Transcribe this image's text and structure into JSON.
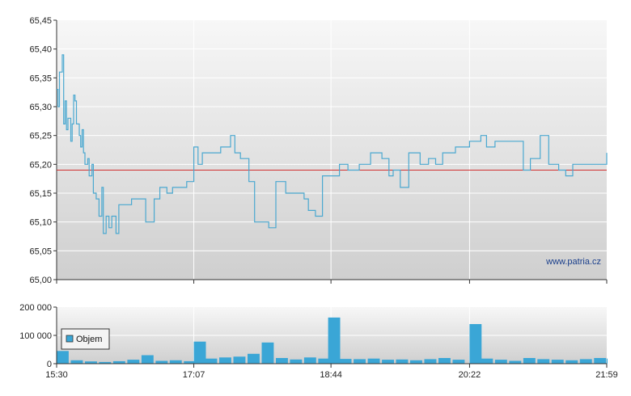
{
  "watermark": "www.patria.cz",
  "colors": {
    "price_line": "#4aa8d0",
    "reference_line": "#d03030",
    "volume_bar": "#3aa6d6"
  },
  "chart_data": [
    {
      "type": "line",
      "title": "",
      "xlabel": "",
      "ylabel": "",
      "grid": true,
      "x_ticks": [
        "15:30",
        "17:07",
        "18:44",
        "20:22",
        "21:59"
      ],
      "y_ticks": [
        "65,45",
        "65,40",
        "65,35",
        "65,30",
        "65,25",
        "65,20",
        "65,15",
        "65,10",
        "65,05",
        "65,00"
      ],
      "ylim": [
        65.0,
        65.45
      ],
      "xlim": [
        "15:30",
        "21:59"
      ],
      "reference_value": 65.19,
      "series": [
        {
          "x": [
            "15:30",
            "15:31",
            "15:32",
            "15:34",
            "15:35",
            "15:36",
            "15:37",
            "15:38",
            "15:40",
            "15:41",
            "15:42",
            "15:43",
            "15:44",
            "15:46",
            "15:47",
            "15:48",
            "15:49",
            "15:50",
            "15:52",
            "15:53",
            "15:55",
            "15:56",
            "15:58",
            "16:00",
            "16:02",
            "16:03",
            "16:05",
            "16:07",
            "16:09",
            "16:12",
            "16:14",
            "16:18",
            "16:23",
            "16:28",
            "16:33",
            "16:39",
            "16:43",
            "16:48",
            "16:52",
            "16:56",
            "17:02",
            "17:07",
            "17:10",
            "17:13",
            "17:20",
            "17:26",
            "17:33",
            "17:36",
            "17:40",
            "17:46",
            "17:50",
            "17:56",
            "18:00",
            "18:05",
            "18:12",
            "18:20",
            "18:25",
            "18:28",
            "18:33",
            "18:38",
            "18:44",
            "18:50",
            "18:56",
            "19:04",
            "19:12",
            "19:20",
            "19:25",
            "19:28",
            "19:33",
            "19:39",
            "19:44",
            "19:47",
            "19:53",
            "19:58",
            "20:03",
            "20:12",
            "20:18",
            "20:22",
            "20:30",
            "20:34",
            "20:40",
            "20:48",
            "20:52",
            "21:00",
            "21:05",
            "21:12",
            "21:18",
            "21:25",
            "21:30",
            "21:35",
            "21:45",
            "21:52",
            "21:59"
          ],
          "values": [
            65.33,
            65.3,
            65.36,
            65.39,
            65.27,
            65.31,
            65.26,
            65.28,
            65.24,
            65.27,
            65.32,
            65.31,
            65.27,
            65.25,
            65.23,
            65.26,
            65.22,
            65.2,
            65.21,
            65.18,
            65.2,
            65.15,
            65.14,
            65.11,
            65.16,
            65.08,
            65.11,
            65.09,
            65.11,
            65.08,
            65.13,
            65.13,
            65.14,
            65.14,
            65.1,
            65.14,
            65.16,
            65.15,
            65.16,
            65.16,
            65.17,
            65.23,
            65.2,
            65.22,
            65.22,
            65.23,
            65.25,
            65.22,
            65.21,
            65.17,
            65.1,
            65.1,
            65.09,
            65.17,
            65.15,
            65.15,
            65.14,
            65.12,
            65.11,
            65.18,
            65.18,
            65.2,
            65.19,
            65.2,
            65.22,
            65.21,
            65.18,
            65.19,
            65.16,
            65.22,
            65.22,
            65.2,
            65.21,
            65.2,
            65.22,
            65.23,
            65.23,
            65.24,
            65.25,
            65.23,
            65.24,
            65.24,
            65.24,
            65.19,
            65.21,
            65.25,
            65.2,
            65.19,
            65.18,
            65.2,
            65.2,
            65.2,
            65.22
          ]
        }
      ]
    },
    {
      "type": "bar",
      "title": "",
      "xlabel": "",
      "ylabel": "",
      "legend": "Objem",
      "legend_placement": "bottom-left",
      "grid": true,
      "y_ticks": [
        "200 000",
        "100 000",
        "0"
      ],
      "ylim": [
        0,
        200000
      ],
      "x_ticks": [
        "15:30",
        "17:07",
        "18:44",
        "20:22",
        "21:59"
      ],
      "xlim": [
        "15:30",
        "21:59"
      ],
      "series": [
        {
          "name": "Objem",
          "x": [
            "15:30",
            "15:40",
            "15:50",
            "16:00",
            "16:10",
            "16:20",
            "16:30",
            "16:40",
            "16:50",
            "17:00",
            "17:07",
            "17:15",
            "17:25",
            "17:35",
            "17:45",
            "17:55",
            "18:05",
            "18:15",
            "18:25",
            "18:35",
            "18:42",
            "18:50",
            "19:00",
            "19:10",
            "19:20",
            "19:30",
            "19:40",
            "19:50",
            "20:00",
            "20:10",
            "20:22",
            "20:30",
            "20:40",
            "20:50",
            "21:00",
            "21:10",
            "21:20",
            "21:30",
            "21:40",
            "21:50",
            "21:59"
          ],
          "values": [
            45000,
            12000,
            8000,
            6000,
            9000,
            14000,
            30000,
            10000,
            12000,
            9000,
            78000,
            18000,
            22000,
            25000,
            35000,
            75000,
            20000,
            15000,
            22000,
            18000,
            163000,
            17000,
            16000,
            18000,
            14000,
            15000,
            12000,
            16000,
            20000,
            14000,
            140000,
            18000,
            14000,
            10000,
            20000,
            16000,
            14000,
            12000,
            16000,
            20000,
            18000
          ]
        }
      ]
    }
  ]
}
